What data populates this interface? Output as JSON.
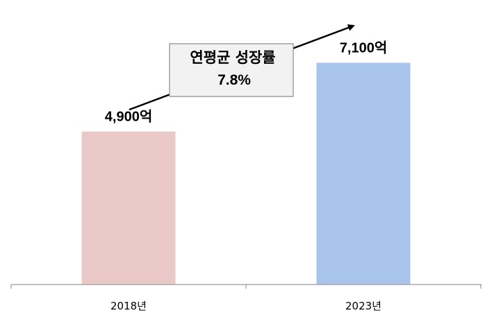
{
  "chart_data": {
    "type": "bar",
    "categories": [
      "2018년",
      "2023년"
    ],
    "values": [
      4900,
      7100
    ],
    "data_labels": [
      "4,900억",
      "7,100억"
    ],
    "colors": [
      "#eac8c8",
      "#a9c4ea"
    ],
    "ylim": [
      0,
      8000
    ],
    "grid": false,
    "annotation": {
      "line1": "연평균 성장률",
      "line2": "7.8%",
      "box_fill": "#f2f2f2",
      "box_stroke": "#8c8c8c"
    }
  }
}
